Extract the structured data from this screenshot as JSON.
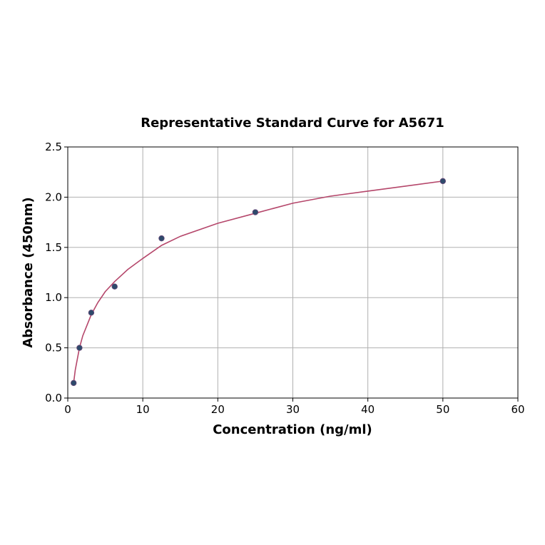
{
  "chart_data": {
    "type": "scatter",
    "title": "Representative Standard Curve for A5671",
    "xlabel": "Concentration (ng/ml)",
    "ylabel": "Absorbance (450nm)",
    "xlim": [
      0,
      60
    ],
    "ylim": [
      0,
      2.5
    ],
    "xticks": [
      0,
      10,
      20,
      30,
      40,
      50,
      60
    ],
    "yticks": [
      0.0,
      0.5,
      1.0,
      1.5,
      2.0,
      2.5
    ],
    "xtick_labels": [
      "0",
      "10",
      "20",
      "30",
      "40",
      "50",
      "60"
    ],
    "ytick_labels": [
      "0.0",
      "0.5",
      "1.0",
      "1.5",
      "2.0",
      "2.5"
    ],
    "grid": true,
    "legend": "none",
    "series": [
      {
        "type": "scatter",
        "color": "#2e4a6b",
        "x": [
          0.78,
          1.56,
          3.13,
          6.25,
          12.5,
          25,
          50
        ],
        "y": [
          0.15,
          0.5,
          0.85,
          1.11,
          1.59,
          1.85,
          2.16
        ]
      },
      {
        "type": "line",
        "color": "#b5476b",
        "x": [
          0.78,
          1.0,
          1.56,
          2.0,
          3.13,
          4.0,
          5.0,
          6.25,
          8.0,
          10.0,
          12.5,
          15.0,
          20.0,
          25.0,
          30.0,
          35.0,
          40.0,
          45.0,
          50.0
        ],
        "y": [
          0.15,
          0.28,
          0.5,
          0.62,
          0.83,
          0.95,
          1.06,
          1.16,
          1.28,
          1.39,
          1.52,
          1.61,
          1.74,
          1.84,
          1.94,
          2.01,
          2.06,
          2.11,
          2.16
        ]
      }
    ]
  }
}
